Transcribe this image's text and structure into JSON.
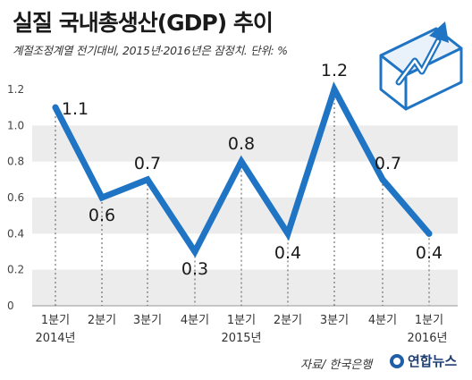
{
  "title": "실질 국내총생산(GDP) 추이",
  "subtitle": "계절조정계열 전기대비, 2015년·2016년은 잠정치. 단위: %",
  "source": "자료/ 한국은행",
  "brand": "연합뉴스",
  "icon": "rising-arrow-chart-icon",
  "colors": {
    "line": "#1f74c4",
    "band": "#ececec"
  },
  "chart_data": {
    "type": "line",
    "categories": [
      "1분기",
      "2분기",
      "3분기",
      "4분기",
      "1분기",
      "2분기",
      "3분기",
      "4분기",
      "1분기"
    ],
    "year_labels": [
      "2014년",
      "",
      "",
      "",
      "2015년",
      "",
      "",
      "",
      "2016년"
    ],
    "values": [
      1.1,
      0.6,
      0.7,
      0.3,
      0.8,
      0.4,
      1.2,
      0.7,
      0.4
    ],
    "value_labels": [
      "1.1",
      "0.6",
      "0.7",
      "0.3",
      "0.8",
      "0.4",
      "1.2",
      "0.7",
      "0.4"
    ],
    "yticks": [
      "0",
      "0.2",
      "0.4",
      "0.6",
      "0.8",
      "1.0",
      "1.2"
    ],
    "ylim": [
      0,
      1.2
    ],
    "grid": "alternating bands"
  }
}
